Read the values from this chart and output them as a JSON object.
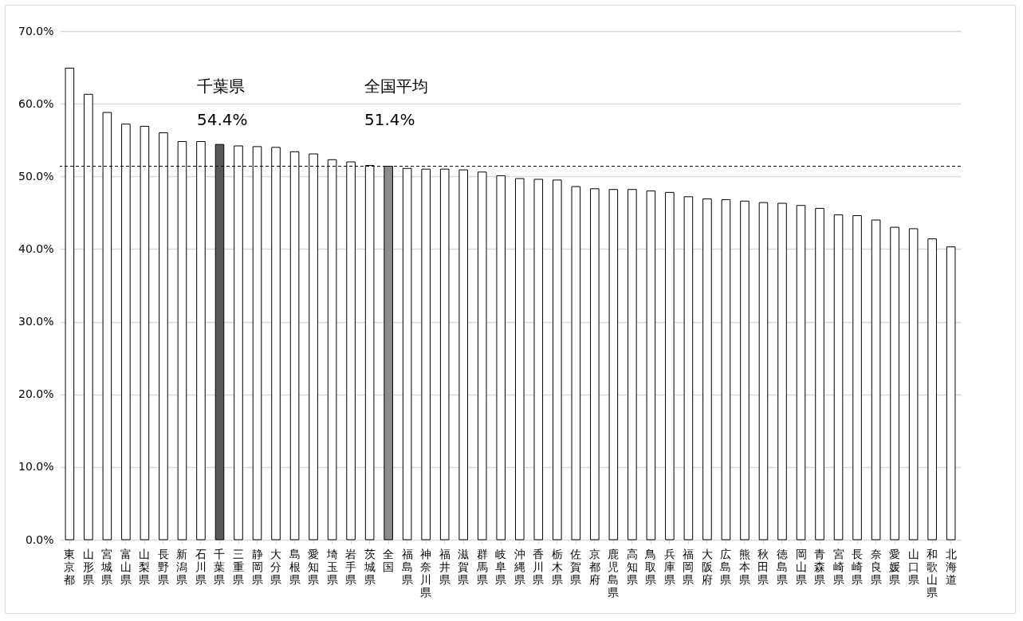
{
  "chart_data": {
    "type": "bar",
    "categories": [
      "東京都",
      "山形県",
      "宮城県",
      "富山県",
      "山梨県",
      "長野県",
      "新潟県",
      "石川県",
      "千葉県",
      "三重県",
      "静岡県",
      "大分県",
      "島根県",
      "愛知県",
      "埼玉県",
      "岩手県",
      "茨城県",
      "全国",
      "福島県",
      "神奈川県",
      "福井県",
      "滋賀県",
      "群馬県",
      "岐阜県",
      "沖縄県",
      "香川県",
      "栃木県",
      "佐賀県",
      "京都府",
      "鹿児島県",
      "高知県",
      "鳥取県",
      "兵庫県",
      "福岡県",
      "大阪府",
      "広島県",
      "熊本県",
      "秋田県",
      "徳島県",
      "岡山県",
      "青森県",
      "宮崎県",
      "長崎県",
      "奈良県",
      "愛媛県",
      "山口県",
      "和歌山県",
      "北海道"
    ],
    "values": [
      64.9,
      61.3,
      58.8,
      57.2,
      56.9,
      56.0,
      54.8,
      54.8,
      54.4,
      54.2,
      54.1,
      54.0,
      53.4,
      53.1,
      52.3,
      52.0,
      51.5,
      51.4,
      51.1,
      51.0,
      51.0,
      50.9,
      50.6,
      50.1,
      49.7,
      49.6,
      49.5,
      48.6,
      48.3,
      48.2,
      48.2,
      48.0,
      47.8,
      47.2,
      46.9,
      46.8,
      46.6,
      46.4,
      46.3,
      46.0,
      45.6,
      44.7,
      44.6,
      44.0,
      43.0,
      42.8,
      41.4,
      40.3
    ],
    "colors": [
      "#ffffff",
      "#ffffff",
      "#ffffff",
      "#ffffff",
      "#ffffff",
      "#ffffff",
      "#ffffff",
      "#ffffff",
      "#595959",
      "#ffffff",
      "#ffffff",
      "#ffffff",
      "#ffffff",
      "#ffffff",
      "#ffffff",
      "#ffffff",
      "#ffffff",
      "#8c8c8c",
      "#ffffff",
      "#ffffff",
      "#ffffff",
      "#ffffff",
      "#ffffff",
      "#ffffff",
      "#ffffff",
      "#ffffff",
      "#ffffff",
      "#ffffff",
      "#ffffff",
      "#ffffff",
      "#ffffff",
      "#ffffff",
      "#ffffff",
      "#ffffff",
      "#ffffff",
      "#ffffff",
      "#ffffff",
      "#ffffff",
      "#ffffff",
      "#ffffff",
      "#ffffff",
      "#ffffff",
      "#ffffff",
      "#ffffff",
      "#ffffff",
      "#ffffff",
      "#ffffff",
      "#ffffff"
    ],
    "ylim": [
      0,
      70
    ],
    "yticks": [
      {
        "value": 0,
        "label": "0.0%"
      },
      {
        "value": 10,
        "label": "10.0%"
      },
      {
        "value": 20,
        "label": "20.0%"
      },
      {
        "value": 30,
        "label": "30.0%"
      },
      {
        "value": 40,
        "label": "40.0%"
      },
      {
        "value": 50,
        "label": "50.0%"
      },
      {
        "value": 60,
        "label": "60.0%"
      },
      {
        "value": 70,
        "label": "70.0%"
      }
    ],
    "grid": "y",
    "ref_lines": [
      {
        "axis": "y",
        "value": 51.4,
        "color": "#000000",
        "line_style": "dashed"
      }
    ],
    "annotations": [
      "千葉県",
      "54.4%",
      "全国平均",
      "51.4%"
    ]
  }
}
